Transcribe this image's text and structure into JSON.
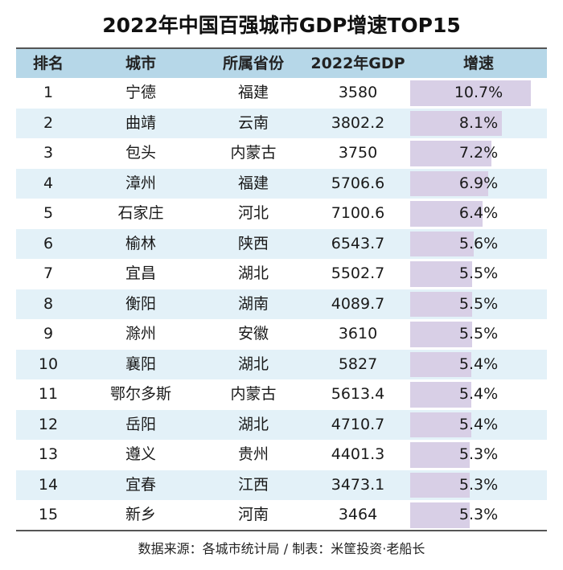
{
  "title": "2022年中国百强城市GDP增速TOP15",
  "columns": [
    "排名",
    "城市",
    "所属省份",
    "2022年GDP",
    "增速"
  ],
  "rate_max": 10.7,
  "rows": [
    {
      "rank": "1",
      "city": "宁德",
      "province": "福建",
      "gdp": "3580",
      "rate": "10.7%",
      "rate_value": 10.7
    },
    {
      "rank": "2",
      "city": "曲靖",
      "province": "云南",
      "gdp": "3802.2",
      "rate": "8.1%",
      "rate_value": 8.1
    },
    {
      "rank": "3",
      "city": "包头",
      "province": "内蒙古",
      "gdp": "3750",
      "rate": "7.2%",
      "rate_value": 7.2
    },
    {
      "rank": "4",
      "city": "漳州",
      "province": "福建",
      "gdp": "5706.6",
      "rate": "6.9%",
      "rate_value": 6.9
    },
    {
      "rank": "5",
      "city": "石家庄",
      "province": "河北",
      "gdp": "7100.6",
      "rate": "6.4%",
      "rate_value": 6.4
    },
    {
      "rank": "6",
      "city": "榆林",
      "province": "陕西",
      "gdp": "6543.7",
      "rate": "5.6%",
      "rate_value": 5.6
    },
    {
      "rank": "7",
      "city": "宜昌",
      "province": "湖北",
      "gdp": "5502.7",
      "rate": "5.5%",
      "rate_value": 5.5
    },
    {
      "rank": "8",
      "city": "衡阳",
      "province": "湖南",
      "gdp": "4089.7",
      "rate": "5.5%",
      "rate_value": 5.5
    },
    {
      "rank": "9",
      "city": "滁州",
      "province": "安徽",
      "gdp": "3610",
      "rate": "5.5%",
      "rate_value": 5.5
    },
    {
      "rank": "10",
      "city": "襄阳",
      "province": "湖北",
      "gdp": "5827",
      "rate": "5.4%",
      "rate_value": 5.4
    },
    {
      "rank": "11",
      "city": "鄂尔多斯",
      "province": "内蒙古",
      "gdp": "5613.4",
      "rate": "5.4%",
      "rate_value": 5.4
    },
    {
      "rank": "12",
      "city": "岳阳",
      "province": "湖北",
      "gdp": "4710.7",
      "rate": "5.4%",
      "rate_value": 5.4
    },
    {
      "rank": "13",
      "city": "遵义",
      "province": "贵州",
      "gdp": "4401.3",
      "rate": "5.3%",
      "rate_value": 5.3
    },
    {
      "rank": "14",
      "city": "宜春",
      "province": "江西",
      "gdp": "3473.1",
      "rate": "5.3%",
      "rate_value": 5.3
    },
    {
      "rank": "15",
      "city": "新乡",
      "province": "河南",
      "gdp": "3464",
      "rate": "5.3%",
      "rate_value": 5.3
    }
  ],
  "source": "数据来源：各城市统计局 / 制表：米筐投资·老船长",
  "watermark": "米筐投资",
  "colors": {
    "header_bg": "#b6d7e8",
    "alt_row_bg": "#e3f1f8",
    "bar": "#d8cfe6"
  }
}
